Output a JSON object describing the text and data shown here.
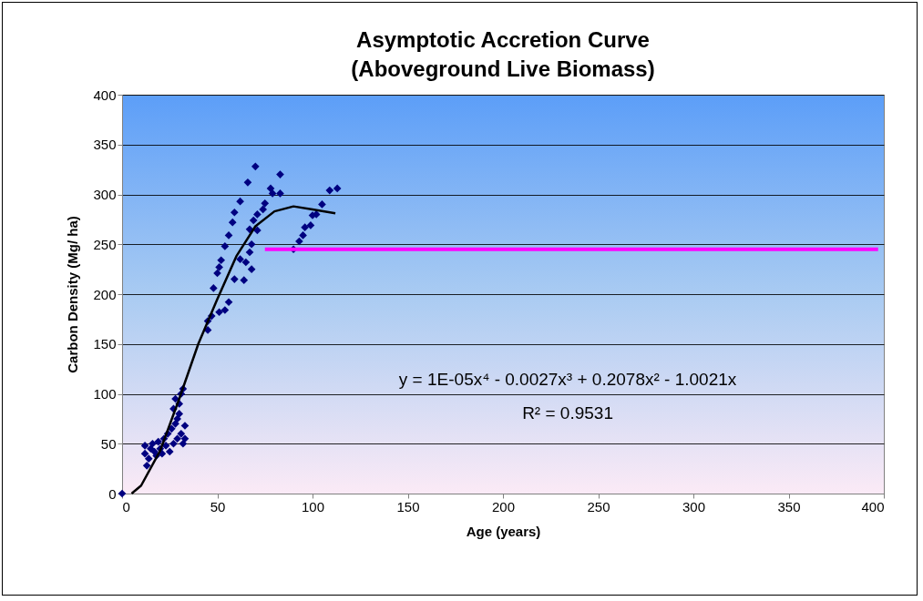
{
  "chart_data": {
    "type": "scatter",
    "title": "Asymptotic Accretion Curve\n(Aboveground Live Biomass)",
    "xlabel": "Age (years)",
    "ylabel": "Carbon Density (Mg/ ha)",
    "xlim": [
      0,
      400
    ],
    "xticks": [
      0,
      50,
      100,
      150,
      200,
      250,
      300,
      350,
      400
    ],
    "ylim": [
      0,
      400
    ],
    "yticks": [
      0,
      50,
      100,
      150,
      200,
      250,
      300,
      350,
      400
    ],
    "grid": "y",
    "legend": false,
    "annotations": [
      "y = 1E-05x⁴ - 0.0027x³ + 0.2078x² - 1.0021x",
      "R² = 0.9531"
    ],
    "series": [
      {
        "color": "#000080",
        "marker": "diamond",
        "x": [
          0,
          12,
          12,
          13,
          14,
          15,
          16,
          17,
          18,
          19,
          20,
          21,
          22,
          23,
          24,
          25,
          26,
          27,
          28,
          29,
          30,
          31,
          32,
          30,
          31,
          32,
          27,
          28,
          29,
          33,
          33,
          45,
          45,
          47,
          48,
          50,
          51,
          51,
          52,
          54,
          54,
          56,
          56,
          58,
          59,
          59,
          62,
          62,
          64,
          65,
          66,
          67,
          67,
          68,
          68,
          69,
          70,
          71,
          71,
          74,
          75,
          78,
          79,
          83,
          83,
          90,
          93,
          95,
          96,
          99,
          100,
          102,
          105,
          109,
          113
        ],
        "values": [
          0,
          48,
          40,
          28,
          35,
          45,
          50,
          42,
          38,
          52,
          45,
          40,
          55,
          48,
          60,
          42,
          65,
          50,
          70,
          55,
          80,
          60,
          50,
          90,
          100,
          105,
          85,
          95,
          75,
          68,
          55,
          164,
          173,
          178,
          206,
          221,
          227,
          182,
          234,
          184,
          248,
          192,
          259,
          272,
          282,
          215,
          293,
          235,
          214,
          232,
          312,
          242,
          265,
          225,
          250,
          274,
          328,
          264,
          280,
          285,
          291,
          306,
          301,
          320,
          301,
          245,
          253,
          259,
          267,
          269,
          279,
          280,
          290,
          304,
          306
        ]
      },
      {
        "type": "line",
        "color": "#000000",
        "x": [
          5,
          10,
          20,
          30,
          40,
          50,
          60,
          70,
          80,
          90,
          100,
          112
        ],
        "values": [
          0,
          8,
          43,
          95,
          150,
          195,
          238,
          268,
          283,
          288,
          285,
          281
        ]
      },
      {
        "type": "line",
        "color": "#ff00ff",
        "x": [
          75,
          397
        ],
        "values": [
          245,
          245
        ]
      }
    ]
  }
}
